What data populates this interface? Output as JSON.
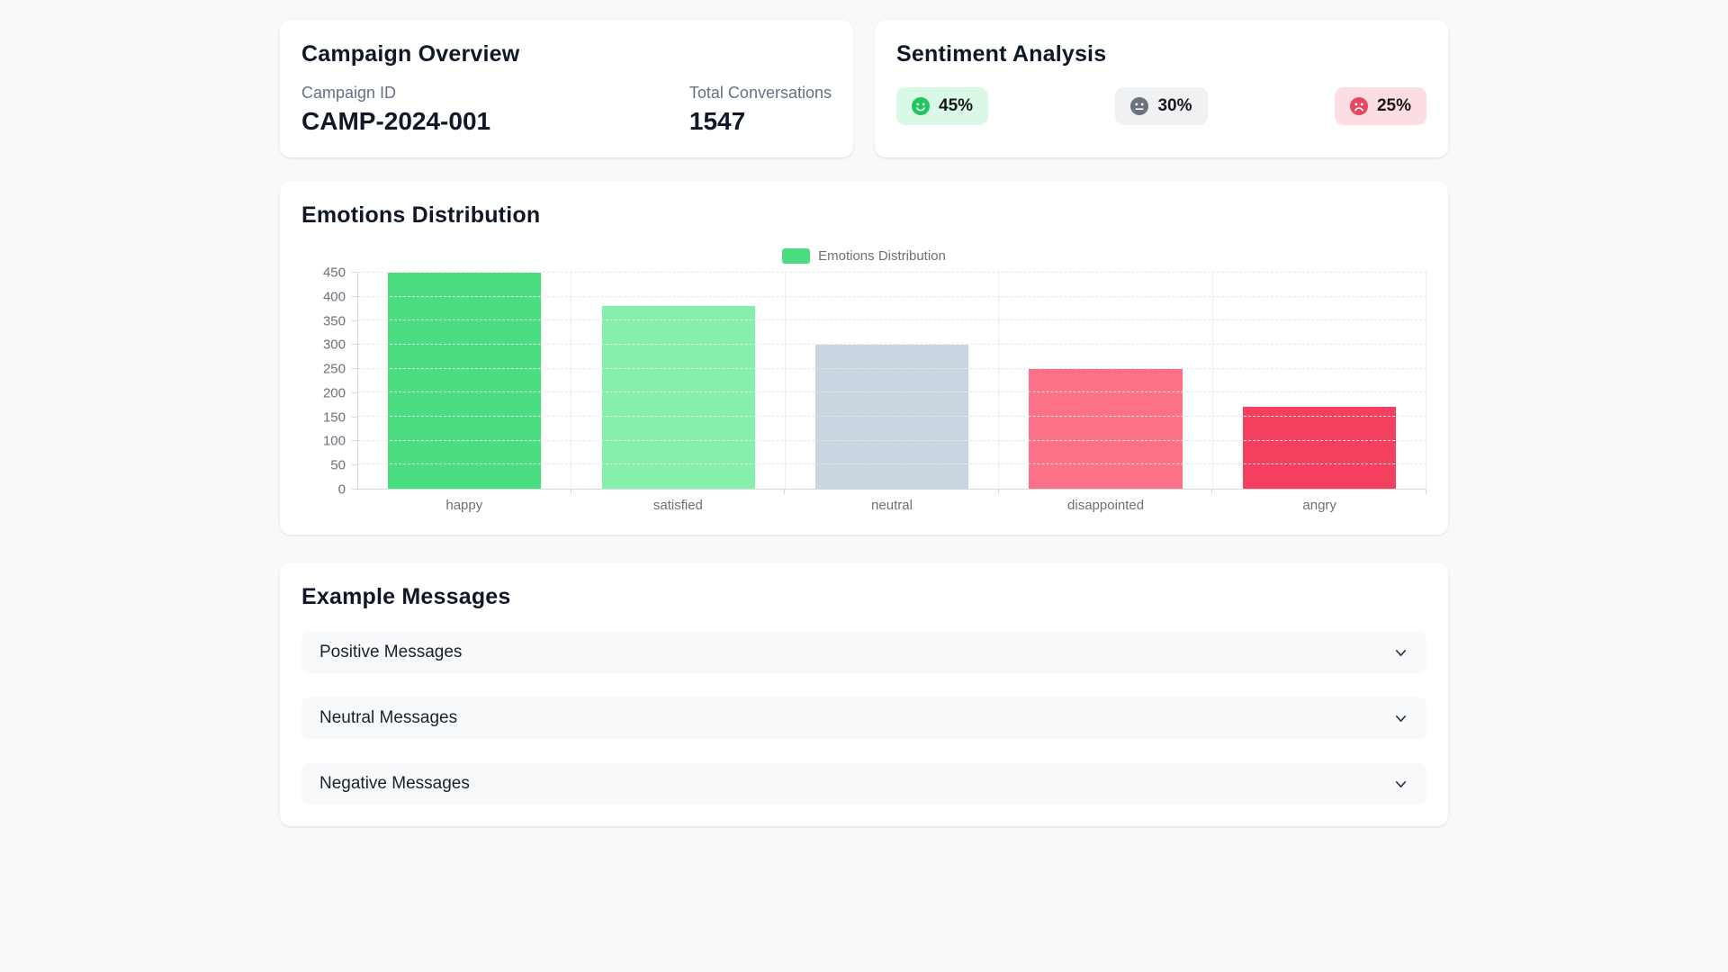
{
  "page": {
    "background": "#f8f9fb"
  },
  "campaign_overview": {
    "title": "Campaign Overview",
    "stats": [
      {
        "label": "Campaign ID",
        "value": "CAMP-2024-001"
      },
      {
        "label": "Total Conversations",
        "value": "1547"
      }
    ]
  },
  "sentiment_analysis": {
    "title": "Sentiment Analysis",
    "items": [
      {
        "name": "positive",
        "icon": "smiley-face-icon",
        "value": "45%",
        "pill_bg": "#d9f8e5",
        "icon_color": "#22c55e"
      },
      {
        "name": "neutral",
        "icon": "neutral-face-icon",
        "value": "30%",
        "pill_bg": "#f0f1f3",
        "icon_color": "#6b7280"
      },
      {
        "name": "negative",
        "icon": "frown-face-icon",
        "value": "25%",
        "pill_bg": "#fcdde1",
        "icon_color": "#e8485f"
      }
    ]
  },
  "chart_section": {
    "title": "Emotions Distribution"
  },
  "chart_data": {
    "type": "bar",
    "title": "Emotions Distribution",
    "legend": {
      "label": "Emotions Distribution",
      "swatch_color": "#4ade80",
      "position": "top-center"
    },
    "categories": [
      "happy",
      "satisfied",
      "neutral",
      "disappointed",
      "angry"
    ],
    "values": [
      450,
      380,
      300,
      250,
      170
    ],
    "bar_colors": [
      "#4ade80",
      "#86efac",
      "#cbd5e1",
      "#fb7185",
      "#f43f5e"
    ],
    "xlabel": "",
    "ylabel": "",
    "ylim": [
      0,
      450
    ],
    "ytick_step": 50,
    "grid": true
  },
  "messages": {
    "title": "Example Messages",
    "groups": [
      {
        "label": "Positive Messages"
      },
      {
        "label": "Neutral Messages"
      },
      {
        "label": "Negative Messages"
      }
    ]
  }
}
